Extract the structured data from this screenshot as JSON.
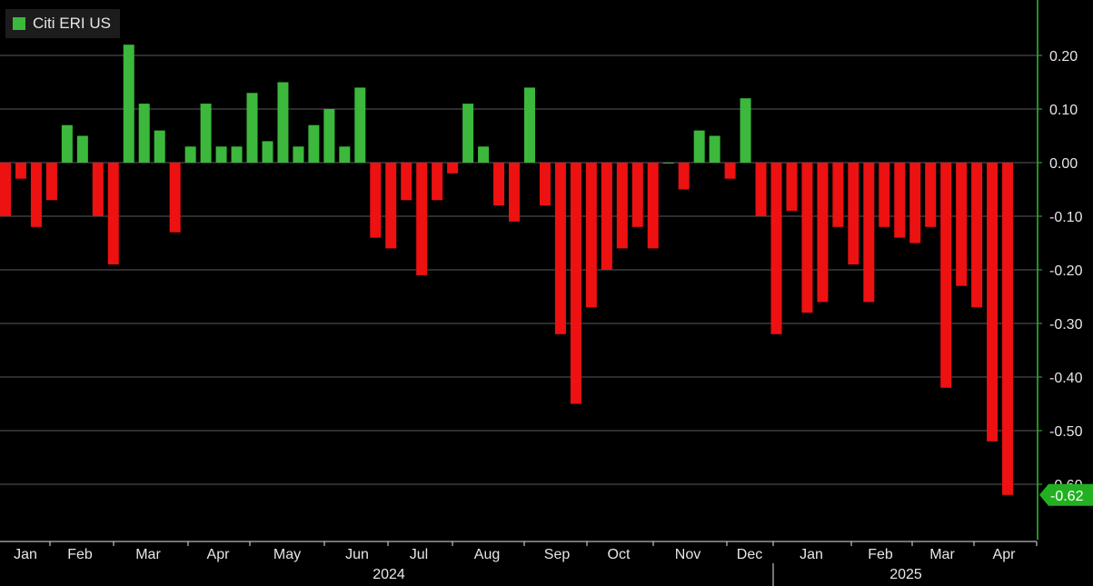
{
  "chart_data": {
    "type": "bar",
    "series": [
      {
        "name": "Citi ERI US",
        "values": [
          -0.1,
          -0.03,
          -0.12,
          -0.07,
          0.07,
          0.05,
          -0.1,
          -0.19,
          0.22,
          0.11,
          0.06,
          -0.13,
          0.03,
          0.11,
          0.03,
          0.03,
          0.13,
          0.04,
          0.15,
          0.03,
          0.07,
          0.1,
          0.03,
          0.14,
          -0.14,
          -0.16,
          -0.07,
          -0.21,
          -0.07,
          -0.02,
          0.11,
          0.03,
          -0.08,
          -0.11,
          0.14,
          -0.08,
          -0.32,
          -0.45,
          -0.27,
          -0.2,
          -0.16,
          -0.12,
          -0.16,
          0.0,
          -0.05,
          0.06,
          0.05,
          -0.03,
          0.12,
          -0.1,
          -0.32,
          -0.09,
          -0.28,
          -0.26,
          -0.12,
          -0.19,
          -0.26,
          -0.12,
          -0.14,
          -0.15,
          -0.12,
          -0.42,
          -0.23,
          -0.27,
          -0.52,
          -0.62
        ]
      }
    ],
    "ylim": [
      -0.7,
      0.3
    ],
    "y_ticks": [
      "0.20",
      "0.10",
      "0.00",
      "-0.10",
      "-0.20",
      "-0.30",
      "-0.40",
      "-0.50",
      "-0.60"
    ],
    "x_month_labels": [
      "Jan",
      "Feb",
      "Mar",
      "Apr",
      "May",
      "Jun",
      "Jul",
      "Aug",
      "Sep",
      "Oct",
      "Nov",
      "Dec",
      "Jan",
      "Feb",
      "Mar",
      "Apr"
    ],
    "x_year_labels": [
      "2024",
      "2025"
    ],
    "last_value_label": "-0.62",
    "grid": true,
    "legend_position": "top-left",
    "colors": {
      "positive": "#3cb83c",
      "negative": "#ee1111",
      "axis": "#2fbf2f",
      "grid": "#5a5a5a",
      "text": "#e6e6e6"
    }
  }
}
